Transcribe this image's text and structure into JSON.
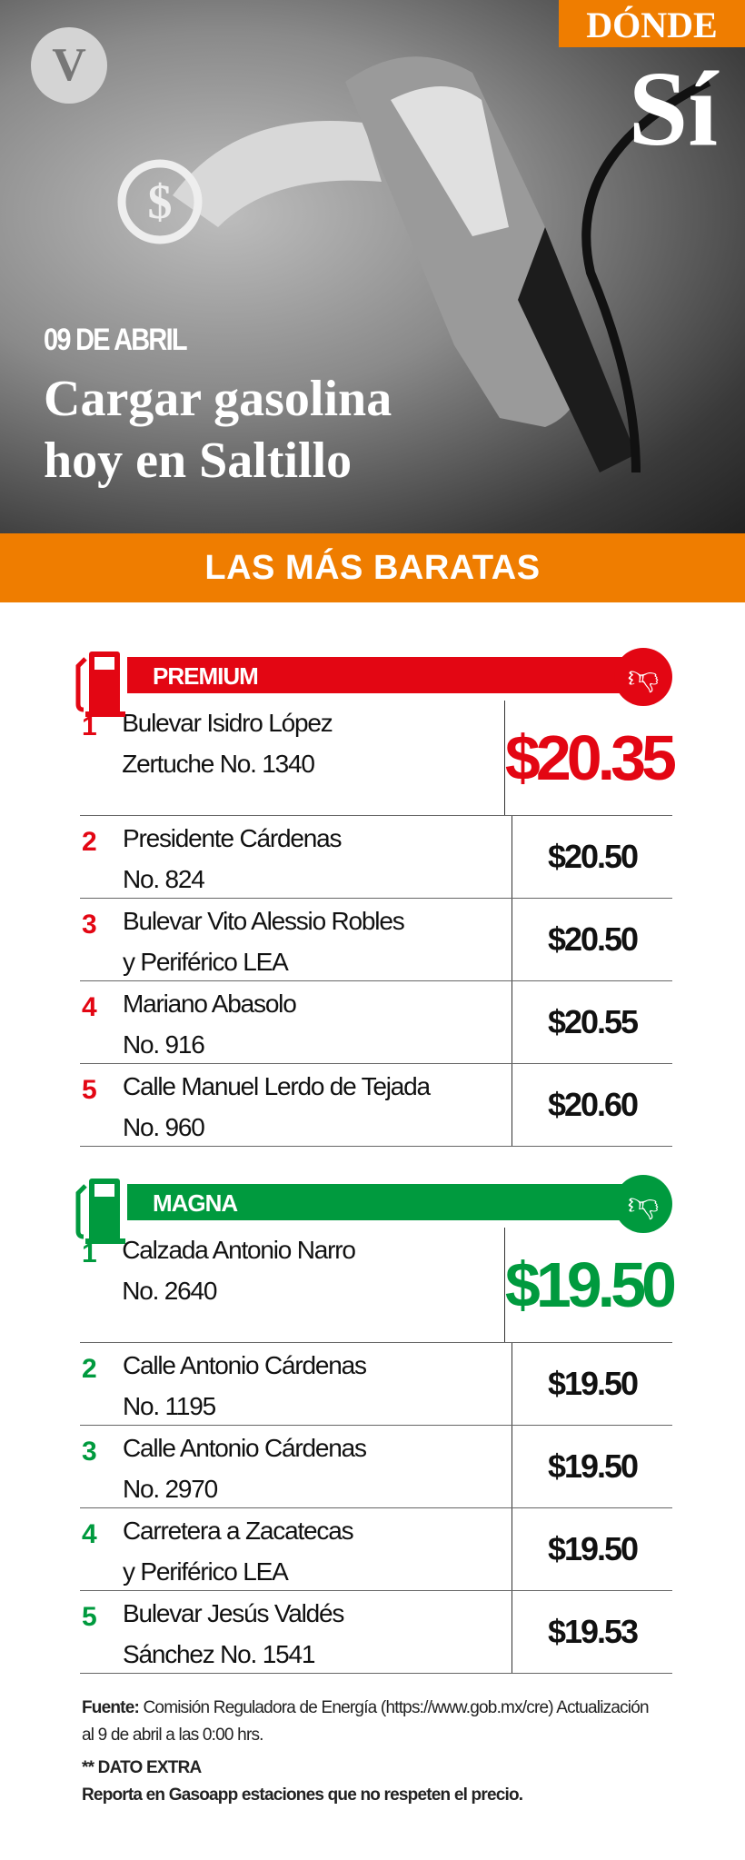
{
  "header": {
    "logo": "V",
    "brand_top": "DÓNDE",
    "brand_bottom": "Sí",
    "date": "09 DE ABRIL",
    "title_line1": "Cargar gasolina",
    "title_line2": "hoy en Saltillo",
    "hero_icon": "fuel-nozzle-dollar"
  },
  "band": "LAS MÁS BARATAS",
  "colors": {
    "orange": "#ef7d00",
    "premium": "#e30613",
    "magna": "#009a3e"
  },
  "premium": {
    "label": "PREMIUM",
    "rows": [
      {
        "rank": "1",
        "address": [
          "Bulevar Isidro López",
          "Zertuche No. 1340"
        ],
        "price": "$20.35"
      },
      {
        "rank": "2",
        "address": [
          "Presidente Cárdenas",
          "No. 824"
        ],
        "price": "$20.50"
      },
      {
        "rank": "3",
        "address": [
          "Bulevar Vito Alessio Robles",
          "y Periférico LEA"
        ],
        "price": "$20.50"
      },
      {
        "rank": "4",
        "address": [
          "Mariano Abasolo",
          "No. 916"
        ],
        "price": "$20.55"
      },
      {
        "rank": "5",
        "address": [
          "Calle Manuel Lerdo de Tejada",
          "No. 960"
        ],
        "price": "$20.60"
      }
    ]
  },
  "magna": {
    "label": "MAGNA",
    "rows": [
      {
        "rank": "1",
        "address": [
          "Calzada Antonio Narro",
          "No. 2640"
        ],
        "price": "$19.50"
      },
      {
        "rank": "2",
        "address": [
          "Calle Antonio Cárdenas",
          "No. 1195"
        ],
        "price": "$19.50"
      },
      {
        "rank": "3",
        "address": [
          "Calle Antonio Cárdenas",
          "No. 2970"
        ],
        "price": "$19.50"
      },
      {
        "rank": "4",
        "address": [
          "Carretera a Zacatecas",
          "y Periférico LEA"
        ],
        "price": "$19.50"
      },
      {
        "rank": "5",
        "address": [
          "Bulevar Jesús Valdés",
          "Sánchez No. 1541"
        ],
        "price": "$19.53"
      }
    ]
  },
  "footer": {
    "source_label": "Fuente:",
    "source_text": "Comisión Reguladora de Energía (https://www.gob.mx/cre) Actualización al 9 de abril a las 0:00 hrs.",
    "extra_label": "** DATO EXTRA",
    "extra_text": "Reporta en Gasoapp estaciones que no respeten el precio."
  }
}
